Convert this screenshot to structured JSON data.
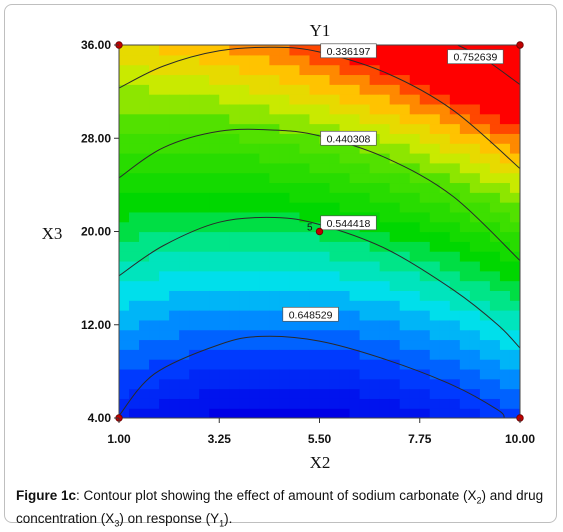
{
  "chart_data": {
    "type": "contour",
    "title": "Y1",
    "xlabel": "X2",
    "ylabel": "X3",
    "xlim": [
      1.0,
      10.0
    ],
    "ylim": [
      4.0,
      36.0
    ],
    "x_ticks": [
      "1.00",
      "3.25",
      "5.50",
      "7.75",
      "10.00"
    ],
    "y_ticks": [
      "36.00",
      "28.00",
      "20.00",
      "12.00",
      "4.00"
    ],
    "x_tick_values": [
      1.0,
      3.25,
      5.5,
      7.75,
      10.0
    ],
    "y_tick_values": [
      36.0,
      28.0,
      20.0,
      12.0,
      4.0
    ],
    "contours": [
      {
        "label": "0.336197",
        "level": 0.336197,
        "points": [
          [
            1.0,
            4.2
          ],
          [
            1.8,
            7.8
          ],
          [
            3.25,
            10.3
          ],
          [
            4.2,
            11.0
          ],
          [
            5.5,
            10.6
          ],
          [
            7.0,
            9.0
          ],
          [
            8.5,
            6.8
          ],
          [
            9.5,
            4.7
          ],
          [
            9.65,
            4.0
          ]
        ]
      },
      {
        "label": "0.440308",
        "level": 0.440308,
        "points": [
          [
            1.0,
            16.2
          ],
          [
            2.0,
            18.8
          ],
          [
            3.25,
            20.8
          ],
          [
            4.5,
            21.2
          ],
          [
            5.5,
            20.6
          ],
          [
            7.0,
            18.5
          ],
          [
            8.5,
            15.0
          ],
          [
            9.5,
            12.0
          ],
          [
            10.0,
            10.0
          ]
        ]
      },
      {
        "label": "0.544418",
        "level": 0.544418,
        "points": [
          [
            1.0,
            24.6
          ],
          [
            2.0,
            27.2
          ],
          [
            3.25,
            28.6
          ],
          [
            4.5,
            28.7
          ],
          [
            5.5,
            28.2
          ],
          [
            7.0,
            26.3
          ],
          [
            8.5,
            23.0
          ],
          [
            10.0,
            17.5
          ]
        ]
      },
      {
        "label": "0.648529",
        "level": 0.648529,
        "points": [
          [
            1.0,
            32.3
          ],
          [
            2.0,
            34.2
          ],
          [
            3.25,
            35.5
          ],
          [
            4.5,
            35.8
          ],
          [
            5.5,
            35.4
          ],
          [
            7.0,
            33.6
          ],
          [
            8.5,
            30.4
          ],
          [
            10.0,
            25.4
          ]
        ]
      },
      {
        "label": "0.752639",
        "level": 0.752639,
        "points": [
          [
            8.6,
            36.0
          ],
          [
            9.2,
            34.8
          ],
          [
            10.0,
            32.6
          ]
        ]
      }
    ],
    "design_points": [
      {
        "x": 1.0,
        "y": 36.0
      },
      {
        "x": 10.0,
        "y": 36.0
      },
      {
        "x": 5.5,
        "y": 20.0,
        "label": "5"
      },
      {
        "x": 1.0,
        "y": 4.0
      },
      {
        "x": 10.0,
        "y": 4.0
      }
    ],
    "colors": {
      "low": "#0000e6",
      "mid": "#00d700",
      "high": "#ff0000",
      "contour_line": "#2a2a2a",
      "design_point": "#c00000"
    }
  },
  "caption": {
    "bold": "Figure 1c",
    "rest": ": Contour plot showing the effect of amount of sodium carbonate (X",
    "sub1": "2",
    "mid": ") and drug concentration (X",
    "sub2": "3",
    "end": ") on response (Y",
    "sub3": "1",
    "tail": ")."
  }
}
